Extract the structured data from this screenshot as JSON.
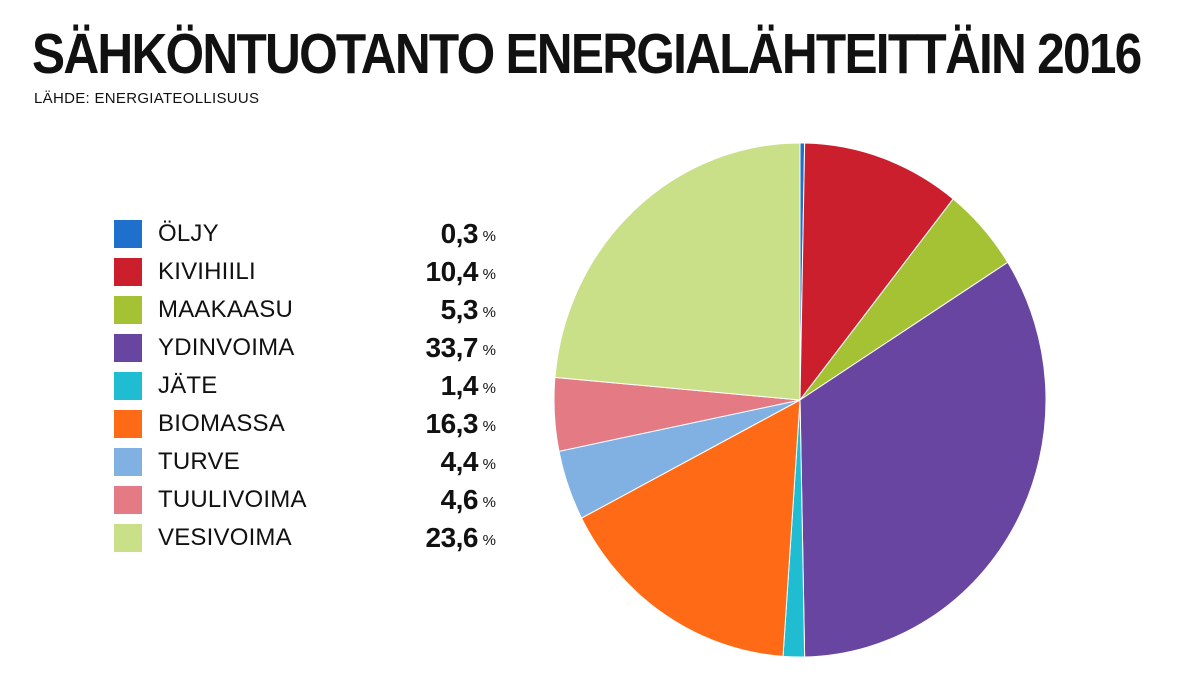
{
  "header": {
    "title": "SÄHKÖNTUOTANTO ENERGIALÄHTEITTÄIN 2016",
    "source": "LÄHDE: ENERGIATEOLLISUUS"
  },
  "legend": {
    "unit": "%",
    "items": [
      {
        "label": "ÖLJY",
        "value_text": "0,3",
        "color": "#1f6fcc"
      },
      {
        "label": "KIVIHIILI",
        "value_text": "10,4",
        "color": "#cc1f2e"
      },
      {
        "label": "MAAKAASU",
        "value_text": "5,3",
        "color": "#a4c234"
      },
      {
        "label": "YDINVOIMA",
        "value_text": "33,7",
        "color": "#6845a0"
      },
      {
        "label": "JÄTE",
        "value_text": "1,4",
        "color": "#1fbcd2"
      },
      {
        "label": "BIOMASSA",
        "value_text": "16,3",
        "color": "#ff6a16"
      },
      {
        "label": "TURVE",
        "value_text": "4,4",
        "color": "#81b1e3"
      },
      {
        "label": "TUULIVOIMA",
        "value_text": "4,6",
        "color": "#e47b84"
      },
      {
        "label": "VESIVOIMA",
        "value_text": "23,6",
        "color": "#c9df88"
      }
    ]
  },
  "chart_data": {
    "type": "pie",
    "title": "SÄHKÖNTUOTANTO ENERGIALÄHTEITTÄIN 2016",
    "subtitle": "LÄHDE: ENERGIATEOLLISUUS",
    "unit": "%",
    "categories": [
      "ÖLJY",
      "KIVIHIILI",
      "MAAKAASU",
      "YDINVOIMA",
      "JÄTE",
      "BIOMASSA",
      "TURVE",
      "TUULIVOIMA",
      "VESIVOIMA"
    ],
    "values": [
      0.3,
      10.4,
      5.3,
      33.7,
      1.4,
      16.3,
      4.4,
      4.6,
      23.6
    ],
    "colors": [
      "#1f6fcc",
      "#cc1f2e",
      "#a4c234",
      "#6845a0",
      "#1fbcd2",
      "#ff6a16",
      "#81b1e3",
      "#e47b84",
      "#c9df88"
    ],
    "start": "12 o'clock",
    "direction": "clockwise",
    "legend_position": "left"
  }
}
